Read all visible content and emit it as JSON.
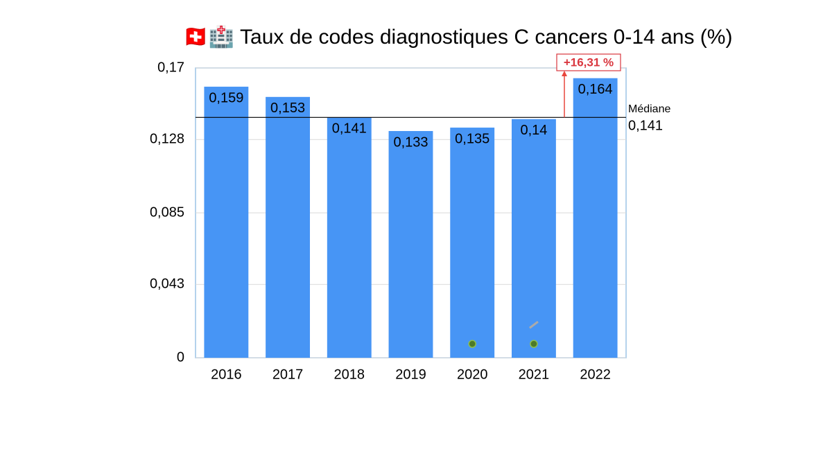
{
  "chart_data": {
    "type": "bar",
    "title": "🇨🇭🏥 Taux de codes diagnostiques C cancers 0-14 ans (%)",
    "categories": [
      "2016",
      "2017",
      "2018",
      "2019",
      "2020",
      "2021",
      "2022"
    ],
    "values": [
      0.159,
      0.153,
      0.141,
      0.133,
      0.135,
      0.14,
      0.164
    ],
    "value_labels": [
      "0,159",
      "0,153",
      "0,141",
      "0,133",
      "0,135",
      "0,14",
      "0,164"
    ],
    "color": "#4795f5",
    "ylim": [
      0,
      0.17
    ],
    "yticks": [
      0,
      {
        "value": 0.043,
        "label": "0,043"
      },
      {
        "value": 0.085,
        "label": "0,085"
      },
      {
        "value": 0.128,
        "label": "0,128"
      },
      {
        "value": 0.17,
        "label": "0,17"
      }
    ],
    "grid": true,
    "median": {
      "name": "Médiane",
      "value": 0.141,
      "label": "0,141"
    },
    "annotation": "+16,31 %"
  }
}
